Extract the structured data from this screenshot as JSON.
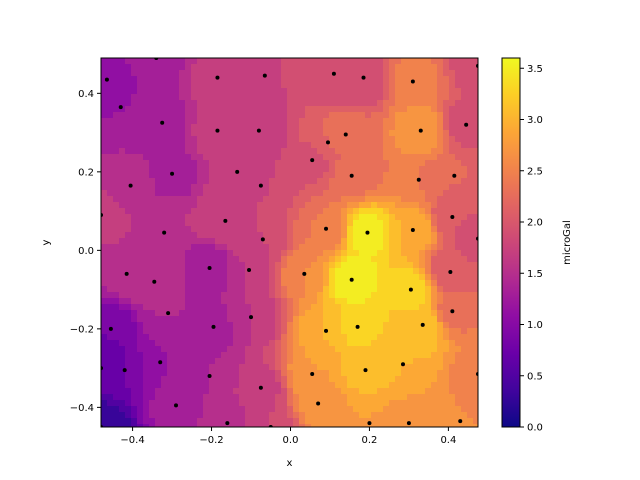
{
  "chart_data": {
    "type": "contour",
    "title": "",
    "xlabel": "x",
    "ylabel": "y",
    "xlim": [
      -0.48,
      0.475
    ],
    "ylim": [
      -0.45,
      0.49
    ],
    "xticks": [
      -0.4,
      -0.2,
      0.0,
      0.2,
      0.4
    ],
    "xtick_labels": [
      "−0.4",
      "−0.2",
      "0.0",
      "0.2",
      "0.4"
    ],
    "yticks": [
      -0.4,
      -0.2,
      0.0,
      0.2,
      0.4
    ],
    "ytick_labels": [
      "−0.4",
      "−0.2",
      "0.0",
      "0.2",
      "0.4"
    ],
    "colormap": "plasma",
    "colorbar": {
      "label": "microGal",
      "min": 0.0,
      "max": 3.6,
      "ticks": [
        0.0,
        0.5,
        1.0,
        1.5,
        2.0,
        2.5,
        3.0,
        3.5
      ],
      "tick_labels": [
        "0.0",
        "0.5",
        "1.0",
        "1.5",
        "2.0",
        "2.5",
        "3.0",
        "3.5"
      ]
    },
    "points": [
      {
        "x": -0.465,
        "y": 0.435,
        "v": 1.1
      },
      {
        "x": -0.34,
        "y": 0.49,
        "v": 1.3
      },
      {
        "x": -0.185,
        "y": 0.44,
        "v": 1.7
      },
      {
        "x": -0.065,
        "y": 0.445,
        "v": 1.8
      },
      {
        "x": 0.11,
        "y": 0.45,
        "v": 1.8
      },
      {
        "x": 0.185,
        "y": 0.44,
        "v": 1.8
      },
      {
        "x": 0.31,
        "y": 0.43,
        "v": 2.5
      },
      {
        "x": 0.475,
        "y": 0.47,
        "v": 1.9
      },
      {
        "x": -0.43,
        "y": 0.365,
        "v": 1.2
      },
      {
        "x": -0.325,
        "y": 0.325,
        "v": 1.3
      },
      {
        "x": -0.185,
        "y": 0.305,
        "v": 1.7
      },
      {
        "x": -0.08,
        "y": 0.305,
        "v": 1.6
      },
      {
        "x": 0.095,
        "y": 0.275,
        "v": 2.2
      },
      {
        "x": 0.14,
        "y": 0.295,
        "v": 2.3
      },
      {
        "x": 0.33,
        "y": 0.305,
        "v": 2.8
      },
      {
        "x": 0.445,
        "y": 0.32,
        "v": 1.9
      },
      {
        "x": -0.405,
        "y": 0.165,
        "v": 1.5
      },
      {
        "x": -0.3,
        "y": 0.195,
        "v": 1.3
      },
      {
        "x": -0.135,
        "y": 0.2,
        "v": 1.7
      },
      {
        "x": -0.075,
        "y": 0.165,
        "v": 1.8
      },
      {
        "x": 0.055,
        "y": 0.23,
        "v": 1.9
      },
      {
        "x": 0.155,
        "y": 0.19,
        "v": 2.3
      },
      {
        "x": 0.325,
        "y": 0.18,
        "v": 2.4
      },
      {
        "x": 0.415,
        "y": 0.19,
        "v": 2.2
      },
      {
        "x": -0.48,
        "y": 0.09,
        "v": 1.7
      },
      {
        "x": -0.32,
        "y": 0.045,
        "v": 1.6
      },
      {
        "x": -0.165,
        "y": 0.075,
        "v": 1.8
      },
      {
        "x": -0.07,
        "y": 0.028,
        "v": 1.8
      },
      {
        "x": 0.09,
        "y": 0.055,
        "v": 2.4
      },
      {
        "x": 0.195,
        "y": 0.045,
        "v": 3.5
      },
      {
        "x": 0.31,
        "y": 0.052,
        "v": 3.0
      },
      {
        "x": 0.41,
        "y": 0.085,
        "v": 2.0
      },
      {
        "x": 0.475,
        "y": 0.03,
        "v": 1.9
      },
      {
        "x": -0.415,
        "y": -0.06,
        "v": 1.5
      },
      {
        "x": -0.345,
        "y": -0.08,
        "v": 1.6
      },
      {
        "x": -0.205,
        "y": -0.045,
        "v": 1.2
      },
      {
        "x": -0.105,
        "y": -0.05,
        "v": 1.6
      },
      {
        "x": 0.035,
        "y": -0.06,
        "v": 2.6
      },
      {
        "x": 0.155,
        "y": -0.075,
        "v": 3.6
      },
      {
        "x": 0.305,
        "y": -0.1,
        "v": 3.3
      },
      {
        "x": 0.405,
        "y": -0.055,
        "v": 2.0
      },
      {
        "x": -0.455,
        "y": -0.2,
        "v": 0.8
      },
      {
        "x": -0.31,
        "y": -0.16,
        "v": 1.4
      },
      {
        "x": -0.195,
        "y": -0.195,
        "v": 1.3
      },
      {
        "x": -0.1,
        "y": -0.17,
        "v": 1.6
      },
      {
        "x": 0.09,
        "y": -0.205,
        "v": 3.0
      },
      {
        "x": 0.17,
        "y": -0.195,
        "v": 3.3
      },
      {
        "x": 0.335,
        "y": -0.19,
        "v": 3.2
      },
      {
        "x": 0.41,
        "y": -0.155,
        "v": 2.3
      },
      {
        "x": -0.48,
        "y": -0.3,
        "v": 0.6
      },
      {
        "x": -0.42,
        "y": -0.305,
        "v": 0.8
      },
      {
        "x": -0.33,
        "y": -0.285,
        "v": 1.2
      },
      {
        "x": -0.205,
        "y": -0.32,
        "v": 1.4
      },
      {
        "x": -0.075,
        "y": -0.35,
        "v": 1.7
      },
      {
        "x": 0.055,
        "y": -0.315,
        "v": 2.8
      },
      {
        "x": 0.19,
        "y": -0.305,
        "v": 3.1
      },
      {
        "x": 0.285,
        "y": -0.29,
        "v": 3.0
      },
      {
        "x": 0.475,
        "y": -0.315,
        "v": 2.5
      },
      {
        "x": -0.48,
        "y": -0.45,
        "v": 0.2
      },
      {
        "x": -0.29,
        "y": -0.395,
        "v": 1.3
      },
      {
        "x": -0.16,
        "y": -0.44,
        "v": 1.5
      },
      {
        "x": -0.05,
        "y": -0.45,
        "v": 1.8
      },
      {
        "x": 0.07,
        "y": -0.39,
        "v": 2.7
      },
      {
        "x": 0.2,
        "y": -0.44,
        "v": 2.8
      },
      {
        "x": 0.3,
        "y": -0.44,
        "v": 2.7
      },
      {
        "x": 0.43,
        "y": -0.435,
        "v": 2.6
      }
    ]
  }
}
